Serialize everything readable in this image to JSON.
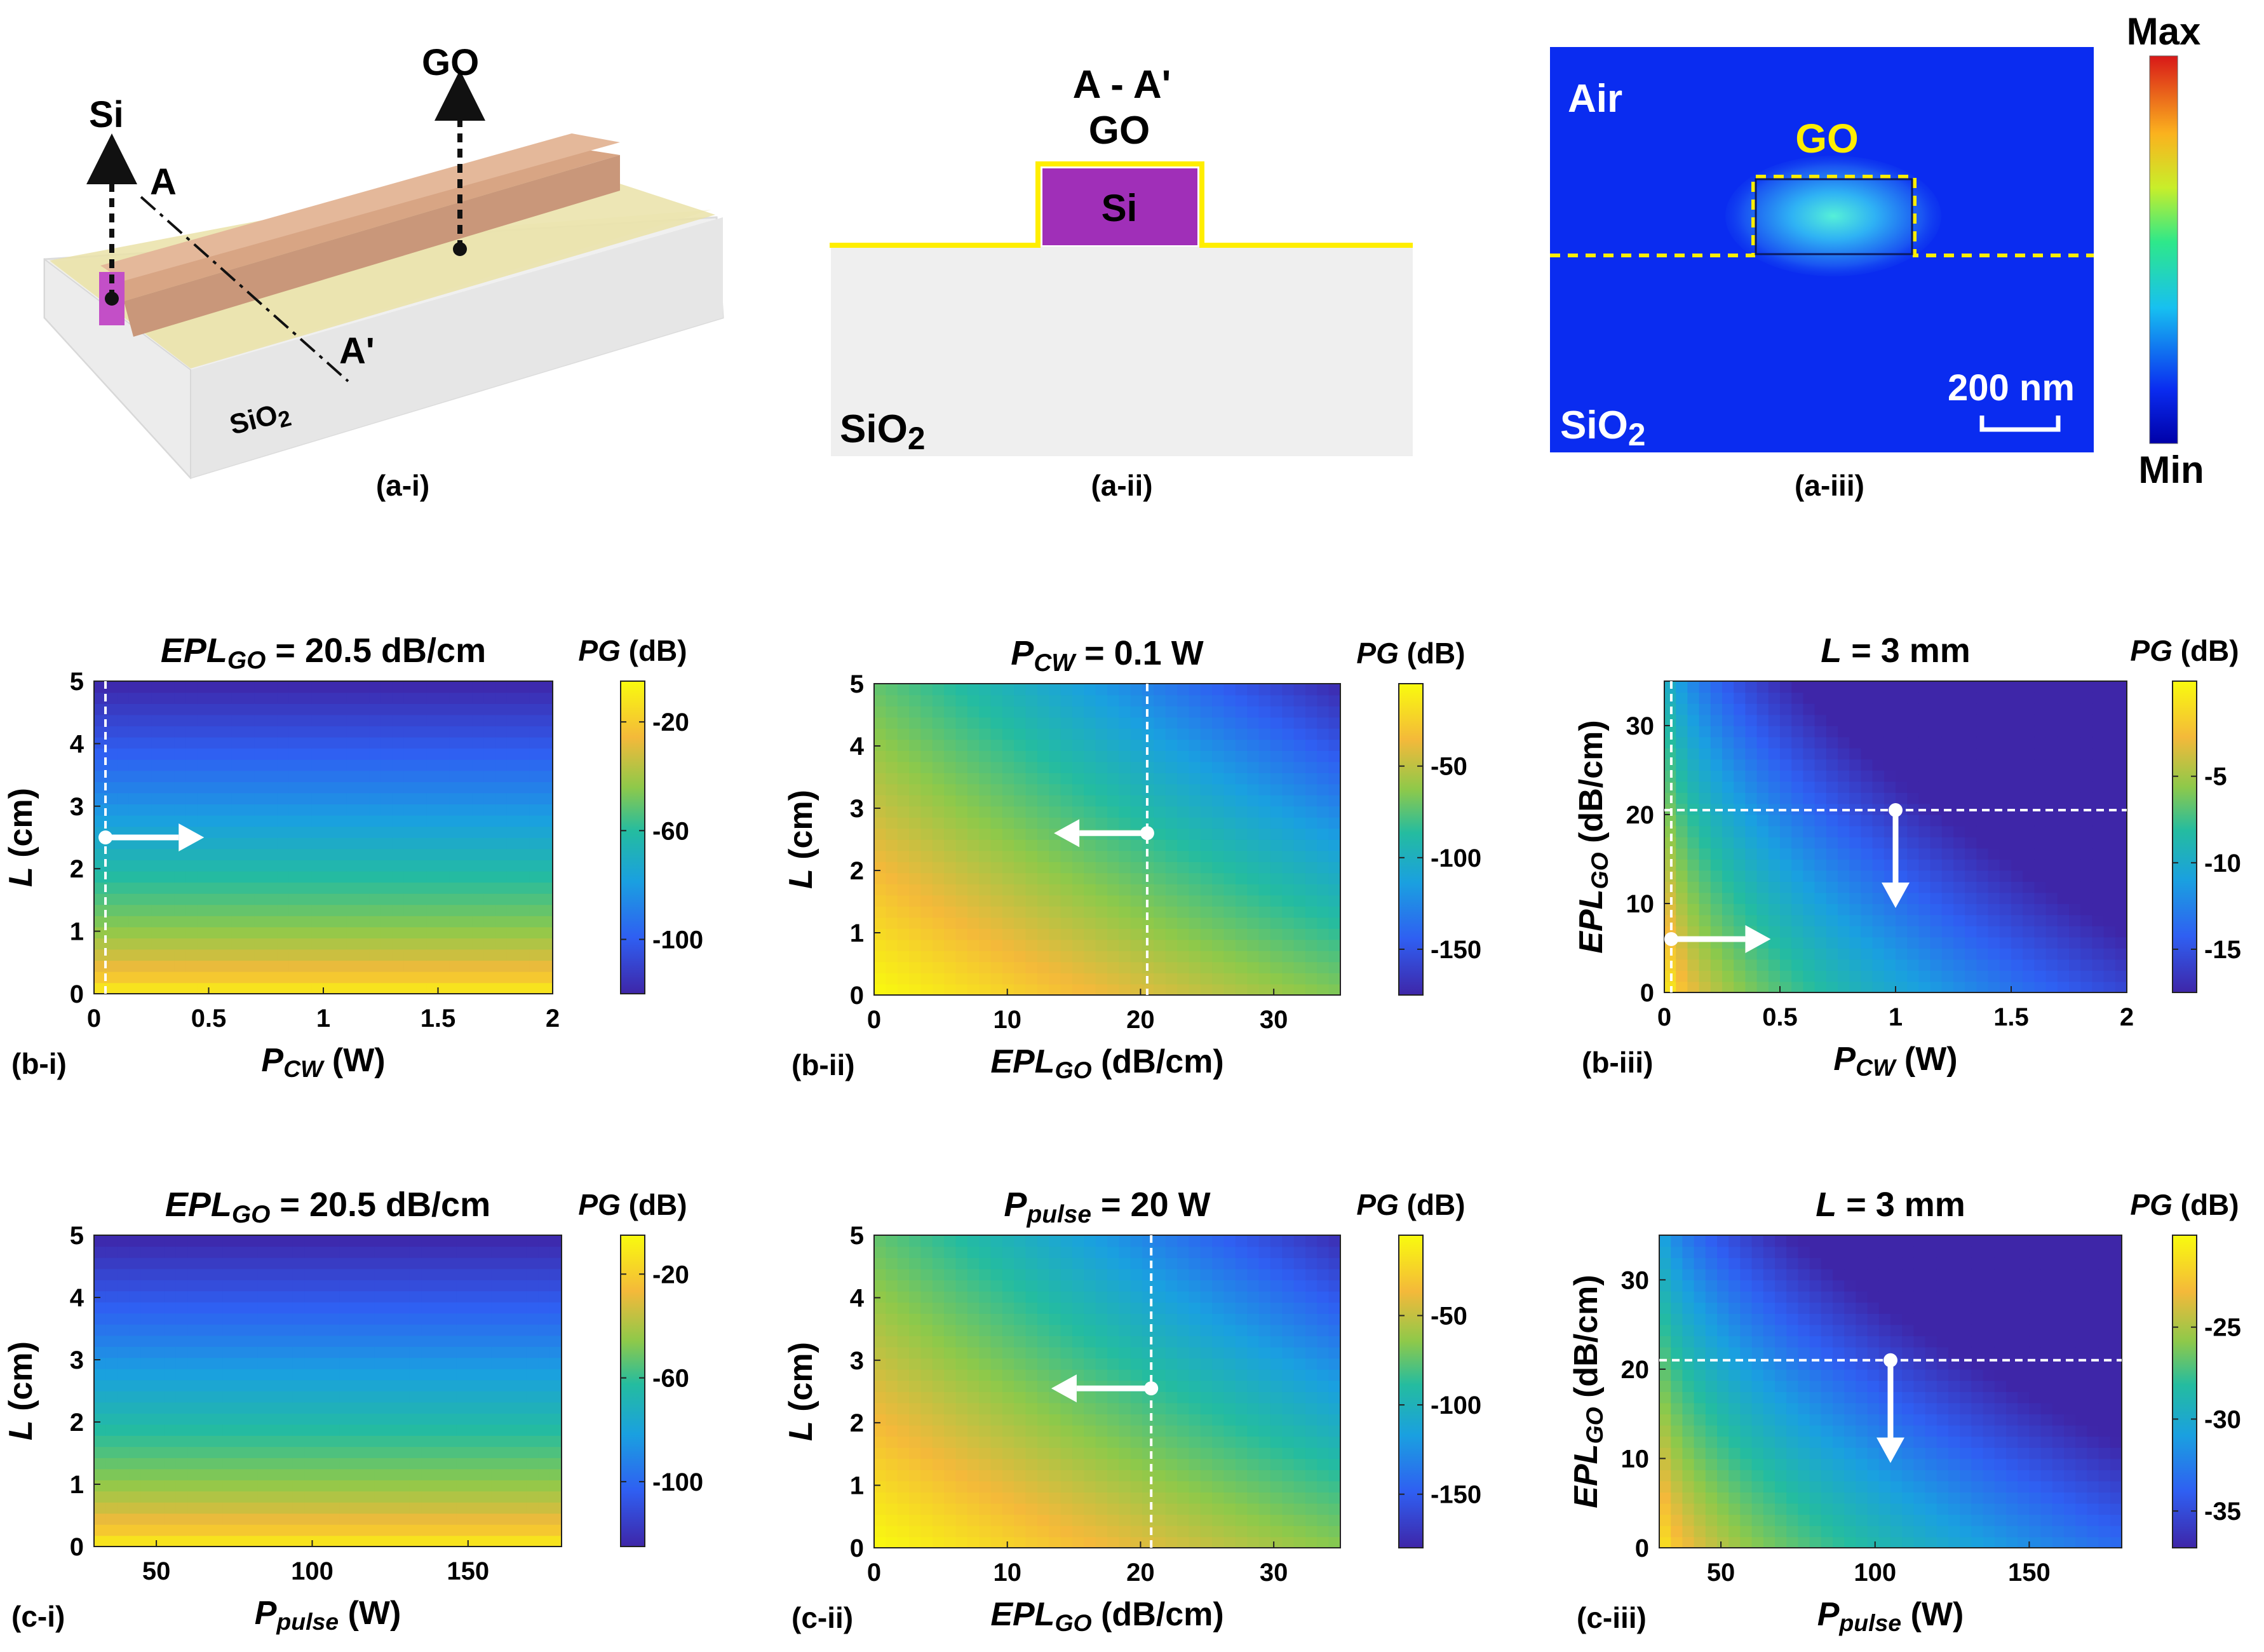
{
  "colors": {
    "si_purple": "#a02fb8",
    "go_yellow": "#ffee00",
    "field_blue": "#0a2cf0",
    "arrow_white": "#ffffff"
  },
  "top": {
    "a_i": {
      "caption": "(a-i)",
      "label_si": "Si",
      "label_go": "GO",
      "label_a": "A",
      "label_a_prime": "A'",
      "label_sio2": "SiO2"
    },
    "a_ii": {
      "caption": "(a-ii)",
      "title_line1": "A - A'",
      "title_line2": "GO",
      "label_si": "Si",
      "label_sio2": "SiO2"
    },
    "a_iii": {
      "caption": "(a-iii)",
      "label_air": "Air",
      "label_go": "GO",
      "scale_bar": "200 nm",
      "label_sio2": "SiO2",
      "colorbar_max": "Max",
      "colorbar_min": "Min"
    }
  },
  "chart_data": [
    {
      "id": "b-i",
      "type": "heatmap",
      "caption": "(b-i)",
      "title_var": "EPL",
      "title_sub": "GO",
      "title_rest": " = 20.5 dB/cm",
      "xlabel_var": "P",
      "xlabel_sub": "CW",
      "xlabel_rest": " (W)",
      "ylabel_var": "L",
      "ylabel_sub": "",
      "ylabel_rest": " (cm)",
      "xlim": [
        0,
        2
      ],
      "ylim": [
        0,
        5
      ],
      "xticks": [
        "0",
        "0.5",
        "1",
        "1.5",
        "2"
      ],
      "xtick_values": [
        0,
        0.5,
        1,
        1.5,
        2
      ],
      "yticks": [
        "0",
        "1",
        "2",
        "3",
        "4",
        "5"
      ],
      "ytick_values": [
        0,
        1,
        2,
        3,
        4,
        5
      ],
      "colorbar_label_var": "PG",
      "colorbar_label_rest": " (dB)",
      "colorbar_ticks": [
        "-20",
        "-60",
        "-100"
      ],
      "colorbar_tick_values": [
        -20,
        -60,
        -100
      ],
      "colorbar_range": [
        -120,
        -5
      ],
      "markers": {
        "vline_x": 0.05,
        "arrow_from": [
          0.05,
          2.5
        ],
        "arrow_to": [
          0.48,
          2.5
        ]
      }
    },
    {
      "id": "b-ii",
      "type": "heatmap",
      "caption": "(b-ii)",
      "title_var": "P",
      "title_sub": "CW",
      "title_rest": " = 0.1 W",
      "xlabel_var": "EPL",
      "xlabel_sub": "GO",
      "xlabel_rest": " (dB/cm)",
      "ylabel_var": "L",
      "ylabel_sub": "",
      "ylabel_rest": " (cm)",
      "xlim": [
        0,
        35
      ],
      "ylim": [
        0,
        5
      ],
      "xticks": [
        "0",
        "10",
        "20",
        "30"
      ],
      "xtick_values": [
        0,
        10,
        20,
        30
      ],
      "yticks": [
        "0",
        "1",
        "2",
        "3",
        "4",
        "5"
      ],
      "ytick_values": [
        0,
        1,
        2,
        3,
        4,
        5
      ],
      "colorbar_label_var": "PG",
      "colorbar_label_rest": " (dB)",
      "colorbar_ticks": [
        "-50",
        "-100",
        "-150"
      ],
      "colorbar_tick_values": [
        -50,
        -100,
        -150
      ],
      "colorbar_range": [
        -175,
        -5
      ],
      "markers": {
        "vline_x": 20.5,
        "arrow_from": [
          20.5,
          2.6
        ],
        "arrow_to": [
          13.5,
          2.6
        ]
      }
    },
    {
      "id": "b-iii",
      "type": "heatmap",
      "caption": "(b-iii)",
      "title_var": "L",
      "title_sub": "",
      "title_rest": " = 3 mm",
      "xlabel_var": "P",
      "xlabel_sub": "CW",
      "xlabel_rest": " (W)",
      "ylabel_var": "EPL",
      "ylabel_sub": "GO",
      "ylabel_rest": " (dB/cm)",
      "xlim": [
        0,
        2
      ],
      "ylim": [
        0,
        35
      ],
      "xticks": [
        "0",
        "0.5",
        "1",
        "1.5",
        "2"
      ],
      "xtick_values": [
        0,
        0.5,
        1,
        1.5,
        2
      ],
      "yticks": [
        "0",
        "10",
        "20",
        "30"
      ],
      "ytick_values": [
        0,
        10,
        20,
        30
      ],
      "colorbar_label_var": "PG",
      "colorbar_label_rest": " (dB)",
      "colorbar_ticks": [
        "-5",
        "-10",
        "-15"
      ],
      "colorbar_tick_values": [
        -5,
        -10,
        -15
      ],
      "colorbar_range": [
        -17.5,
        0.5
      ],
      "markers": {
        "vline_x": 0.03,
        "hline_y": 20.5,
        "arrow_from": [
          0.03,
          6
        ],
        "arrow_to": [
          0.46,
          6
        ],
        "arrow2_from": [
          1.0,
          20.5
        ],
        "arrow2_to": [
          1.0,
          9.5
        ]
      }
    },
    {
      "id": "c-i",
      "type": "heatmap",
      "caption": "(c-i)",
      "title_var": "EPL",
      "title_sub": "GO",
      "title_rest": " = 20.5 dB/cm",
      "xlabel_var": "P",
      "xlabel_sub": "pulse",
      "xlabel_rest": " (W)",
      "ylabel_var": "L",
      "ylabel_sub": "",
      "ylabel_rest": " (cm)",
      "xlim": [
        30,
        180
      ],
      "ylim": [
        0,
        5
      ],
      "xticks": [
        "50",
        "100",
        "150"
      ],
      "xtick_values": [
        50,
        100,
        150
      ],
      "yticks": [
        "0",
        "1",
        "2",
        "3",
        "4",
        "5"
      ],
      "ytick_values": [
        0,
        1,
        2,
        3,
        4,
        5
      ],
      "colorbar_label_var": "PG",
      "colorbar_label_rest": " (dB)",
      "colorbar_ticks": [
        "-20",
        "-60",
        "-100"
      ],
      "colorbar_tick_values": [
        -20,
        -60,
        -100
      ],
      "colorbar_range": [
        -125,
        -5
      ],
      "markers": {}
    },
    {
      "id": "c-ii",
      "type": "heatmap",
      "caption": "(c-ii)",
      "title_var": "P",
      "title_sub": "pulse",
      "title_rest": " = 20 W",
      "xlabel_var": "EPL",
      "xlabel_sub": "GO",
      "xlabel_rest": " (dB/cm)",
      "ylabel_var": "L",
      "ylabel_sub": "",
      "ylabel_rest": " (cm)",
      "xlim": [
        0,
        35
      ],
      "ylim": [
        0,
        5
      ],
      "xticks": [
        "0",
        "10",
        "20",
        "30"
      ],
      "xtick_values": [
        0,
        10,
        20,
        30
      ],
      "yticks": [
        "0",
        "1",
        "2",
        "3",
        "4",
        "5"
      ],
      "ytick_values": [
        0,
        1,
        2,
        3,
        4,
        5
      ],
      "colorbar_label_var": "PG",
      "colorbar_label_rest": " (dB)",
      "colorbar_ticks": [
        "-50",
        "-100",
        "-150"
      ],
      "colorbar_tick_values": [
        -50,
        -100,
        -150
      ],
      "colorbar_range": [
        -180,
        -5
      ],
      "markers": {
        "vline_x": 20.8,
        "arrow_from": [
          20.8,
          2.55
        ],
        "arrow_to": [
          13.3,
          2.55
        ]
      }
    },
    {
      "id": "c-iii",
      "type": "heatmap",
      "caption": "(c-iii)",
      "title_var": "L",
      "title_sub": "",
      "title_rest": " = 3 mm",
      "xlabel_var": "P",
      "xlabel_sub": "pulse",
      "xlabel_rest": " (W)",
      "ylabel_var": "EPL",
      "ylabel_sub": "GO",
      "ylabel_rest": " (dB/cm)",
      "xlim": [
        30,
        180
      ],
      "ylim": [
        0,
        35
      ],
      "xticks": [
        "50",
        "100",
        "150"
      ],
      "xtick_values": [
        50,
        100,
        150
      ],
      "yticks": [
        "0",
        "10",
        "20",
        "30"
      ],
      "ytick_values": [
        0,
        10,
        20,
        30
      ],
      "colorbar_label_var": "PG",
      "colorbar_label_rest": " (dB)",
      "colorbar_ticks": [
        "-25",
        "-30",
        "-35"
      ],
      "colorbar_tick_values": [
        -25,
        -30,
        -35
      ],
      "colorbar_range": [
        -37,
        -20
      ],
      "markers": {
        "hline_y": 21,
        "arrow2_from": [
          105,
          21
        ],
        "arrow2_to": [
          105,
          9.5
        ]
      }
    }
  ]
}
